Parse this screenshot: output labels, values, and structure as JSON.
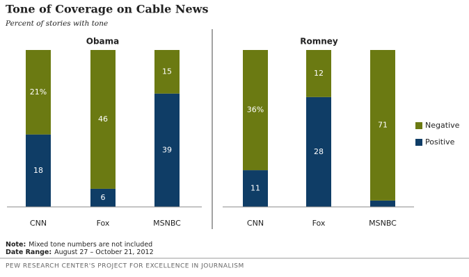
{
  "title": "Tone of Coverage on Cable News",
  "subtitle": "Percent of stories with tone",
  "notes": [
    {
      "label": "Note:",
      "text": "Mixed tone numbers are not included"
    },
    {
      "label": "Date Range:",
      "text": "August 27 – October 21, 2012"
    }
  ],
  "source": "PEW RESEARCH CENTER'S PROJECT FOR EXCELLENCE IN JOURNALISM",
  "chart_data": {
    "type": "bar",
    "stacked": true,
    "percent_stacked": true,
    "legend": {
      "position": "right",
      "items": [
        {
          "name": "Negative",
          "color": "#6b7a12"
        },
        {
          "name": "Positive",
          "color": "#0f3d66"
        }
      ]
    },
    "panels": [
      {
        "title": "Obama",
        "categories": [
          "CNN",
          "Fox",
          "MSNBC"
        ],
        "series": [
          {
            "values": [
              18,
              6,
              39
            ]
          },
          {
            "values": [
              21,
              46,
              15
            ],
            "value_labels": [
              "21%",
              "46",
              "15"
            ]
          }
        ]
      },
      {
        "title": "Romney",
        "categories": [
          "CNN",
          "Fox",
          "MSNBC"
        ],
        "series": [
          {
            "values": [
              11,
              28,
              3
            ]
          },
          {
            "values": [
              36,
              12,
              71
            ],
            "value_labels": [
              "36%",
              "12",
              "71"
            ]
          }
        ]
      }
    ]
  }
}
